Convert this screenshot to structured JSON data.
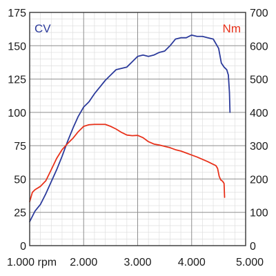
{
  "chart_data": {
    "type": "line",
    "xlim": [
      1000,
      5000
    ],
    "x_ticks": [
      1000,
      2000,
      3000,
      4000,
      5000
    ],
    "x_tick_labels": [
      "1.000 rpm",
      "2.000",
      "3.000",
      "4.000",
      "5.000"
    ],
    "y_left": {
      "label": "CV",
      "lim": [
        0,
        175
      ],
      "ticks": [
        0,
        25,
        50,
        75,
        100,
        125,
        150,
        175
      ],
      "tick_labels": [
        "0",
        "25",
        "50",
        "75",
        "100",
        "125",
        "150",
        "175"
      ]
    },
    "y_right": {
      "label": "Nm",
      "lim": [
        0,
        700
      ],
      "ticks": [
        0,
        100,
        200,
        300,
        400,
        500,
        600,
        700
      ],
      "tick_labels": [
        "0",
        "100",
        "200",
        "300",
        "400",
        "500",
        "600",
        "700"
      ]
    },
    "grid": true,
    "series": [
      {
        "name": "CV",
        "axis": "left",
        "color": "#2b3a9b",
        "points": [
          [
            1000,
            18
          ],
          [
            1100,
            26
          ],
          [
            1200,
            31
          ],
          [
            1300,
            39
          ],
          [
            1400,
            48
          ],
          [
            1500,
            57
          ],
          [
            1600,
            67
          ],
          [
            1700,
            78
          ],
          [
            1800,
            88
          ],
          [
            1900,
            97
          ],
          [
            2000,
            104
          ],
          [
            2100,
            108
          ],
          [
            2200,
            114
          ],
          [
            2300,
            119
          ],
          [
            2400,
            124
          ],
          [
            2500,
            128
          ],
          [
            2600,
            132
          ],
          [
            2700,
            133
          ],
          [
            2800,
            134
          ],
          [
            2900,
            138
          ],
          [
            3000,
            142
          ],
          [
            3100,
            143
          ],
          [
            3200,
            142
          ],
          [
            3300,
            143
          ],
          [
            3400,
            145
          ],
          [
            3500,
            146
          ],
          [
            3600,
            150
          ],
          [
            3700,
            155
          ],
          [
            3800,
            156
          ],
          [
            3900,
            156
          ],
          [
            4000,
            158
          ],
          [
            4100,
            157
          ],
          [
            4200,
            157
          ],
          [
            4300,
            156
          ],
          [
            4400,
            155
          ],
          [
            4500,
            148
          ],
          [
            4550,
            137
          ],
          [
            4600,
            134
          ],
          [
            4650,
            132
          ],
          [
            4680,
            128
          ],
          [
            4700,
            115
          ],
          [
            4710,
            100
          ]
        ]
      },
      {
        "name": "Nm",
        "axis": "right",
        "color": "#e8311a",
        "points": [
          [
            1000,
            132
          ],
          [
            1050,
            160
          ],
          [
            1100,
            168
          ],
          [
            1200,
            178
          ],
          [
            1300,
            195
          ],
          [
            1400,
            228
          ],
          [
            1500,
            262
          ],
          [
            1600,
            288
          ],
          [
            1700,
            306
          ],
          [
            1800,
            322
          ],
          [
            1900,
            342
          ],
          [
            2000,
            358
          ],
          [
            2100,
            363
          ],
          [
            2200,
            364
          ],
          [
            2300,
            364
          ],
          [
            2400,
            364
          ],
          [
            2500,
            358
          ],
          [
            2600,
            350
          ],
          [
            2700,
            340
          ],
          [
            2800,
            332
          ],
          [
            2900,
            330
          ],
          [
            3000,
            331
          ],
          [
            3100,
            324
          ],
          [
            3200,
            312
          ],
          [
            3300,
            305
          ],
          [
            3400,
            302
          ],
          [
            3500,
            298
          ],
          [
            3600,
            294
          ],
          [
            3700,
            288
          ],
          [
            3800,
            284
          ],
          [
            3900,
            278
          ],
          [
            4000,
            272
          ],
          [
            4100,
            266
          ],
          [
            4200,
            259
          ],
          [
            4300,
            252
          ],
          [
            4400,
            244
          ],
          [
            4450,
            240
          ],
          [
            4480,
            232
          ],
          [
            4510,
            208
          ],
          [
            4540,
            197
          ],
          [
            4570,
            194
          ],
          [
            4600,
            187
          ],
          [
            4610,
            145
          ]
        ]
      }
    ]
  }
}
